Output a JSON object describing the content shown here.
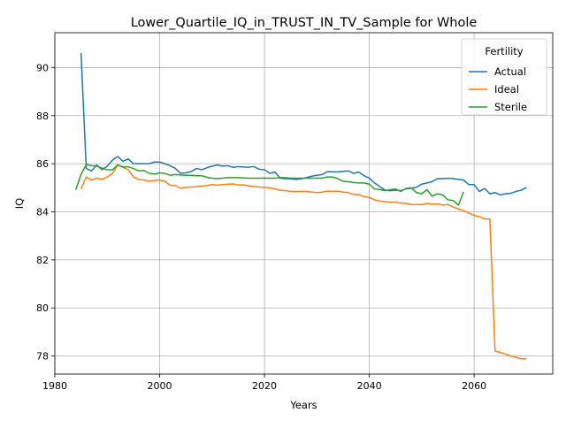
{
  "chart_data": {
    "type": "line",
    "title": "Lower_Quartile_IQ_in_TRUST_IN_TV_Sample for Whole",
    "xlabel": "Years",
    "ylabel": "IQ",
    "xlim": [
      1980,
      2075
    ],
    "ylim": [
      77.25,
      91.45
    ],
    "xticks": [
      1980,
      2000,
      2020,
      2040,
      2060
    ],
    "yticks": [
      78,
      80,
      82,
      84,
      86,
      88,
      90
    ],
    "grid": true,
    "legend": {
      "title": "Fertility",
      "placement": "top-right"
    },
    "series": [
      {
        "name": "Actual",
        "color": "#1f77b4",
        "points": [
          [
            1985,
            90.6
          ],
          [
            1986,
            85.8
          ],
          [
            1987,
            85.7
          ],
          [
            1988,
            85.95
          ],
          [
            1989,
            85.75
          ],
          [
            1990,
            85.9
          ],
          [
            1991,
            86.15
          ],
          [
            1992,
            86.3
          ],
          [
            1993,
            86.1
          ],
          [
            1994,
            86.2
          ],
          [
            1995,
            86.0
          ],
          [
            1996,
            86.0
          ],
          [
            1997,
            86.0
          ],
          [
            1998,
            86.0
          ],
          [
            1999,
            86.07
          ],
          [
            2000,
            86.07
          ],
          [
            2001,
            86.0
          ],
          [
            2002,
            85.92
          ],
          [
            2003,
            85.8
          ],
          [
            2004,
            85.6
          ],
          [
            2005,
            85.62
          ],
          [
            2006,
            85.67
          ],
          [
            2007,
            85.8
          ],
          [
            2008,
            85.75
          ],
          [
            2009,
            85.83
          ],
          [
            2010,
            85.9
          ],
          [
            2011,
            85.95
          ],
          [
            2012,
            85.9
          ],
          [
            2013,
            85.92
          ],
          [
            2014,
            85.85
          ],
          [
            2015,
            85.88
          ],
          [
            2016,
            85.86
          ],
          [
            2017,
            85.86
          ],
          [
            2018,
            85.88
          ],
          [
            2019,
            85.77
          ],
          [
            2020,
            85.75
          ],
          [
            2021,
            85.6
          ],
          [
            2022,
            85.65
          ],
          [
            2023,
            85.4
          ],
          [
            2024,
            85.38
          ],
          [
            2025,
            85.37
          ],
          [
            2026,
            85.35
          ],
          [
            2027,
            85.37
          ],
          [
            2028,
            85.42
          ],
          [
            2029,
            85.48
          ],
          [
            2030,
            85.52
          ],
          [
            2031,
            85.55
          ],
          [
            2032,
            85.67
          ],
          [
            2033,
            85.66
          ],
          [
            2034,
            85.66
          ],
          [
            2035,
            85.68
          ],
          [
            2036,
            85.7
          ],
          [
            2037,
            85.6
          ],
          [
            2038,
            85.65
          ],
          [
            2039,
            85.5
          ],
          [
            2040,
            85.4
          ],
          [
            2041,
            85.2
          ],
          [
            2042,
            85.05
          ],
          [
            2043,
            84.9
          ],
          [
            2044,
            84.88
          ],
          [
            2045,
            84.9
          ],
          [
            2046,
            84.88
          ],
          [
            2047,
            84.95
          ],
          [
            2048,
            84.98
          ],
          [
            2049,
            85.02
          ],
          [
            2050,
            85.15
          ],
          [
            2051,
            85.2
          ],
          [
            2052,
            85.25
          ],
          [
            2053,
            85.38
          ],
          [
            2054,
            85.38
          ],
          [
            2055,
            85.4
          ],
          [
            2056,
            85.38
          ],
          [
            2057,
            85.35
          ],
          [
            2058,
            85.32
          ],
          [
            2059,
            85.13
          ],
          [
            2060,
            85.13
          ],
          [
            2061,
            84.85
          ],
          [
            2062,
            84.97
          ],
          [
            2063,
            84.75
          ],
          [
            2064,
            84.8
          ],
          [
            2065,
            84.7
          ],
          [
            2066,
            84.75
          ],
          [
            2067,
            84.77
          ],
          [
            2068,
            84.85
          ],
          [
            2069,
            84.9
          ],
          [
            2070,
            85.01
          ]
        ]
      },
      {
        "name": "Ideal",
        "color": "#ff7f0e",
        "points": [
          [
            1985,
            84.95
          ],
          [
            1986,
            85.45
          ],
          [
            1987,
            85.32
          ],
          [
            1988,
            85.4
          ],
          [
            1989,
            85.35
          ],
          [
            1990,
            85.45
          ],
          [
            1991,
            85.6
          ],
          [
            1992,
            85.95
          ],
          [
            1993,
            85.85
          ],
          [
            1994,
            85.75
          ],
          [
            1995,
            85.45
          ],
          [
            1996,
            85.35
          ],
          [
            1997,
            85.32
          ],
          [
            1998,
            85.28
          ],
          [
            1999,
            85.3
          ],
          [
            2000,
            85.32
          ],
          [
            2001,
            85.27
          ],
          [
            2002,
            85.1
          ],
          [
            2003,
            85.1
          ],
          [
            2004,
            84.98
          ],
          [
            2005,
            85.02
          ],
          [
            2006,
            85.03
          ],
          [
            2007,
            85.04
          ],
          [
            2008,
            85.07
          ],
          [
            2009,
            85.09
          ],
          [
            2010,
            85.13
          ],
          [
            2011,
            85.11
          ],
          [
            2012,
            85.13
          ],
          [
            2013,
            85.15
          ],
          [
            2014,
            85.16
          ],
          [
            2015,
            85.12
          ],
          [
            2016,
            85.12
          ],
          [
            2017,
            85.08
          ],
          [
            2018,
            85.05
          ],
          [
            2019,
            85.03
          ],
          [
            2020,
            85.02
          ],
          [
            2021,
            85.0
          ],
          [
            2022,
            84.95
          ],
          [
            2023,
            84.9
          ],
          [
            2024,
            84.88
          ],
          [
            2025,
            84.85
          ],
          [
            2026,
            84.84
          ],
          [
            2027,
            84.85
          ],
          [
            2028,
            84.85
          ],
          [
            2029,
            84.82
          ],
          [
            2030,
            84.8
          ],
          [
            2031,
            84.82
          ],
          [
            2032,
            84.86
          ],
          [
            2033,
            84.85
          ],
          [
            2034,
            84.86
          ],
          [
            2035,
            84.82
          ],
          [
            2036,
            84.8
          ],
          [
            2037,
            84.72
          ],
          [
            2038,
            84.72
          ],
          [
            2039,
            84.63
          ],
          [
            2040,
            84.6
          ],
          [
            2041,
            84.5
          ],
          [
            2042,
            84.45
          ],
          [
            2043,
            84.42
          ],
          [
            2044,
            84.4
          ],
          [
            2045,
            84.4
          ],
          [
            2046,
            84.36
          ],
          [
            2047,
            84.35
          ],
          [
            2048,
            84.3
          ],
          [
            2049,
            84.3
          ],
          [
            2050,
            84.3
          ],
          [
            2051,
            84.35
          ],
          [
            2052,
            84.32
          ],
          [
            2053,
            84.33
          ],
          [
            2054,
            84.28
          ],
          [
            2055,
            84.3
          ],
          [
            2056,
            84.2
          ],
          [
            2057,
            84.12
          ],
          [
            2058,
            84.05
          ],
          [
            2059,
            83.95
          ],
          [
            2060,
            83.85
          ],
          [
            2061,
            83.8
          ],
          [
            2062,
            83.7
          ],
          [
            2063,
            83.7
          ],
          [
            2064,
            78.2
          ],
          [
            2065,
            78.15
          ],
          [
            2066,
            78.08
          ],
          [
            2067,
            78.0
          ],
          [
            2068,
            77.95
          ],
          [
            2069,
            77.88
          ],
          [
            2070,
            77.88
          ]
        ]
      },
      {
        "name": "Sterile",
        "color": "#2ca02c",
        "points": [
          [
            1984,
            84.92
          ],
          [
            1985,
            85.55
          ],
          [
            1986,
            85.97
          ],
          [
            1987,
            85.92
          ],
          [
            1988,
            85.9
          ],
          [
            1989,
            85.82
          ],
          [
            1990,
            85.75
          ],
          [
            1991,
            85.75
          ],
          [
            1992,
            85.95
          ],
          [
            1993,
            85.87
          ],
          [
            1994,
            85.87
          ],
          [
            1995,
            85.8
          ],
          [
            1996,
            85.7
          ],
          [
            1997,
            85.72
          ],
          [
            1998,
            85.6
          ],
          [
            1999,
            85.57
          ],
          [
            2000,
            85.62
          ],
          [
            2001,
            85.6
          ],
          [
            2002,
            85.52
          ],
          [
            2003,
            85.55
          ],
          [
            2004,
            85.53
          ],
          [
            2005,
            85.52
          ],
          [
            2006,
            85.52
          ],
          [
            2007,
            85.5
          ],
          [
            2008,
            85.5
          ],
          [
            2009,
            85.44
          ],
          [
            2010,
            85.4
          ],
          [
            2011,
            85.38
          ],
          [
            2012,
            85.4
          ],
          [
            2013,
            85.42
          ],
          [
            2014,
            85.42
          ],
          [
            2015,
            85.42
          ],
          [
            2016,
            85.41
          ],
          [
            2017,
            85.4
          ],
          [
            2018,
            85.4
          ],
          [
            2019,
            85.4
          ],
          [
            2020,
            85.4
          ],
          [
            2021,
            85.4
          ],
          [
            2022,
            85.4
          ],
          [
            2023,
            85.42
          ],
          [
            2024,
            85.42
          ],
          [
            2025,
            85.4
          ],
          [
            2026,
            85.4
          ],
          [
            2027,
            85.4
          ],
          [
            2028,
            85.4
          ],
          [
            2029,
            85.4
          ],
          [
            2030,
            85.4
          ],
          [
            2031,
            85.4
          ],
          [
            2032,
            85.45
          ],
          [
            2033,
            85.45
          ],
          [
            2034,
            85.38
          ],
          [
            2035,
            85.27
          ],
          [
            2036,
            85.25
          ],
          [
            2037,
            85.22
          ],
          [
            2038,
            85.2
          ],
          [
            2039,
            85.2
          ],
          [
            2040,
            85.15
          ],
          [
            2041,
            84.95
          ],
          [
            2042,
            84.93
          ],
          [
            2043,
            84.88
          ],
          [
            2044,
            84.92
          ],
          [
            2045,
            84.95
          ],
          [
            2046,
            84.85
          ],
          [
            2047,
            84.97
          ],
          [
            2048,
            85.0
          ],
          [
            2049,
            84.8
          ],
          [
            2050,
            84.75
          ],
          [
            2051,
            84.92
          ],
          [
            2052,
            84.65
          ],
          [
            2053,
            84.75
          ],
          [
            2054,
            84.7
          ],
          [
            2055,
            84.5
          ],
          [
            2056,
            84.47
          ],
          [
            2057,
            84.28
          ],
          [
            2058,
            84.83
          ]
        ]
      }
    ]
  }
}
